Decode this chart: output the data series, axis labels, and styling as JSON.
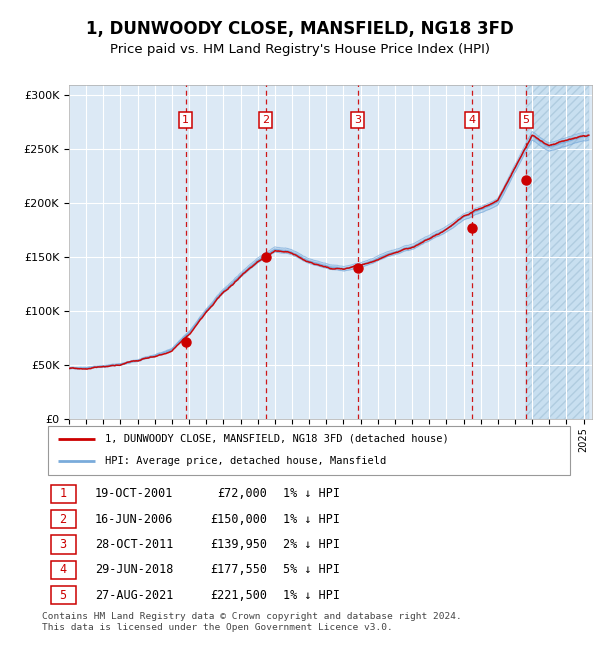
{
  "title": "1, DUNWOODY CLOSE, MANSFIELD, NG18 3FD",
  "subtitle": "Price paid vs. HM Land Registry's House Price Index (HPI)",
  "title_fontsize": 12,
  "subtitle_fontsize": 9.5,
  "bg_color": "#dce9f5",
  "ylim": [
    0,
    310000
  ],
  "yticks": [
    0,
    50000,
    100000,
    150000,
    200000,
    250000,
    300000
  ],
  "xlim_start": 1995.0,
  "xlim_end": 2025.5,
  "sale_dates": [
    2001.8,
    2006.46,
    2011.82,
    2018.49,
    2021.65
  ],
  "sale_prices": [
    72000,
    150000,
    139950,
    177550,
    221500
  ],
  "sale_labels": [
    "1",
    "2",
    "3",
    "4",
    "5"
  ],
  "sale_date_strs": [
    "19-OCT-2001",
    "16-JUN-2006",
    "28-OCT-2011",
    "29-JUN-2018",
    "27-AUG-2021"
  ],
  "sale_price_strs": [
    "£72,000",
    "£150,000",
    "£139,950",
    "£177,550",
    "£221,500"
  ],
  "sale_hpi_strs": [
    "1% ↓ HPI",
    "1% ↓ HPI",
    "2% ↓ HPI",
    "5% ↓ HPI",
    "1% ↓ HPI"
  ],
  "legend_line1": "1, DUNWOODY CLOSE, MANSFIELD, NG18 3FD (detached house)",
  "legend_line2": "HPI: Average price, detached house, Mansfield",
  "footer": "Contains HM Land Registry data © Crown copyright and database right 2024.\nThis data is licensed under the Open Government Licence v3.0.",
  "red_line_color": "#cc0000",
  "blue_line_color": "#7aabdb",
  "marker_color": "#cc0000",
  "dashed_line_color": "#cc0000",
  "label_box_color": "#cc0000",
  "grid_color": "#ffffff"
}
